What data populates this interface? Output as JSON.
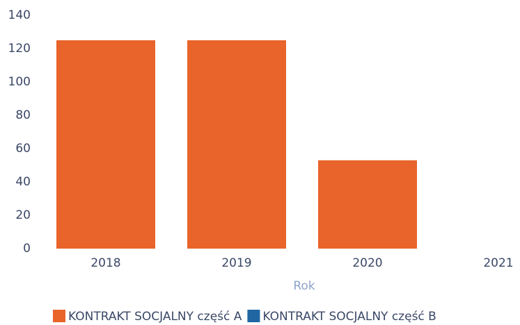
{
  "chart_data": {
    "type": "bar",
    "x_label": "Rok",
    "categories": [
      "2018",
      "2019",
      "2020",
      "2021"
    ],
    "series": [
      {
        "name": "KONTRAKT SOCJALNY część A",
        "color": "#e8642a",
        "values": [
          125,
          125,
          53,
          null
        ]
      },
      {
        "name": "KONTRAKT SOCJALNY część B",
        "color": "#1f66a3",
        "values": [
          null,
          null,
          null,
          null
        ]
      }
    ],
    "ylim": [
      0,
      140
    ],
    "yticks": [
      0,
      20,
      40,
      60,
      80,
      100,
      120,
      140
    ],
    "grid": false,
    "legend": "bottom"
  }
}
